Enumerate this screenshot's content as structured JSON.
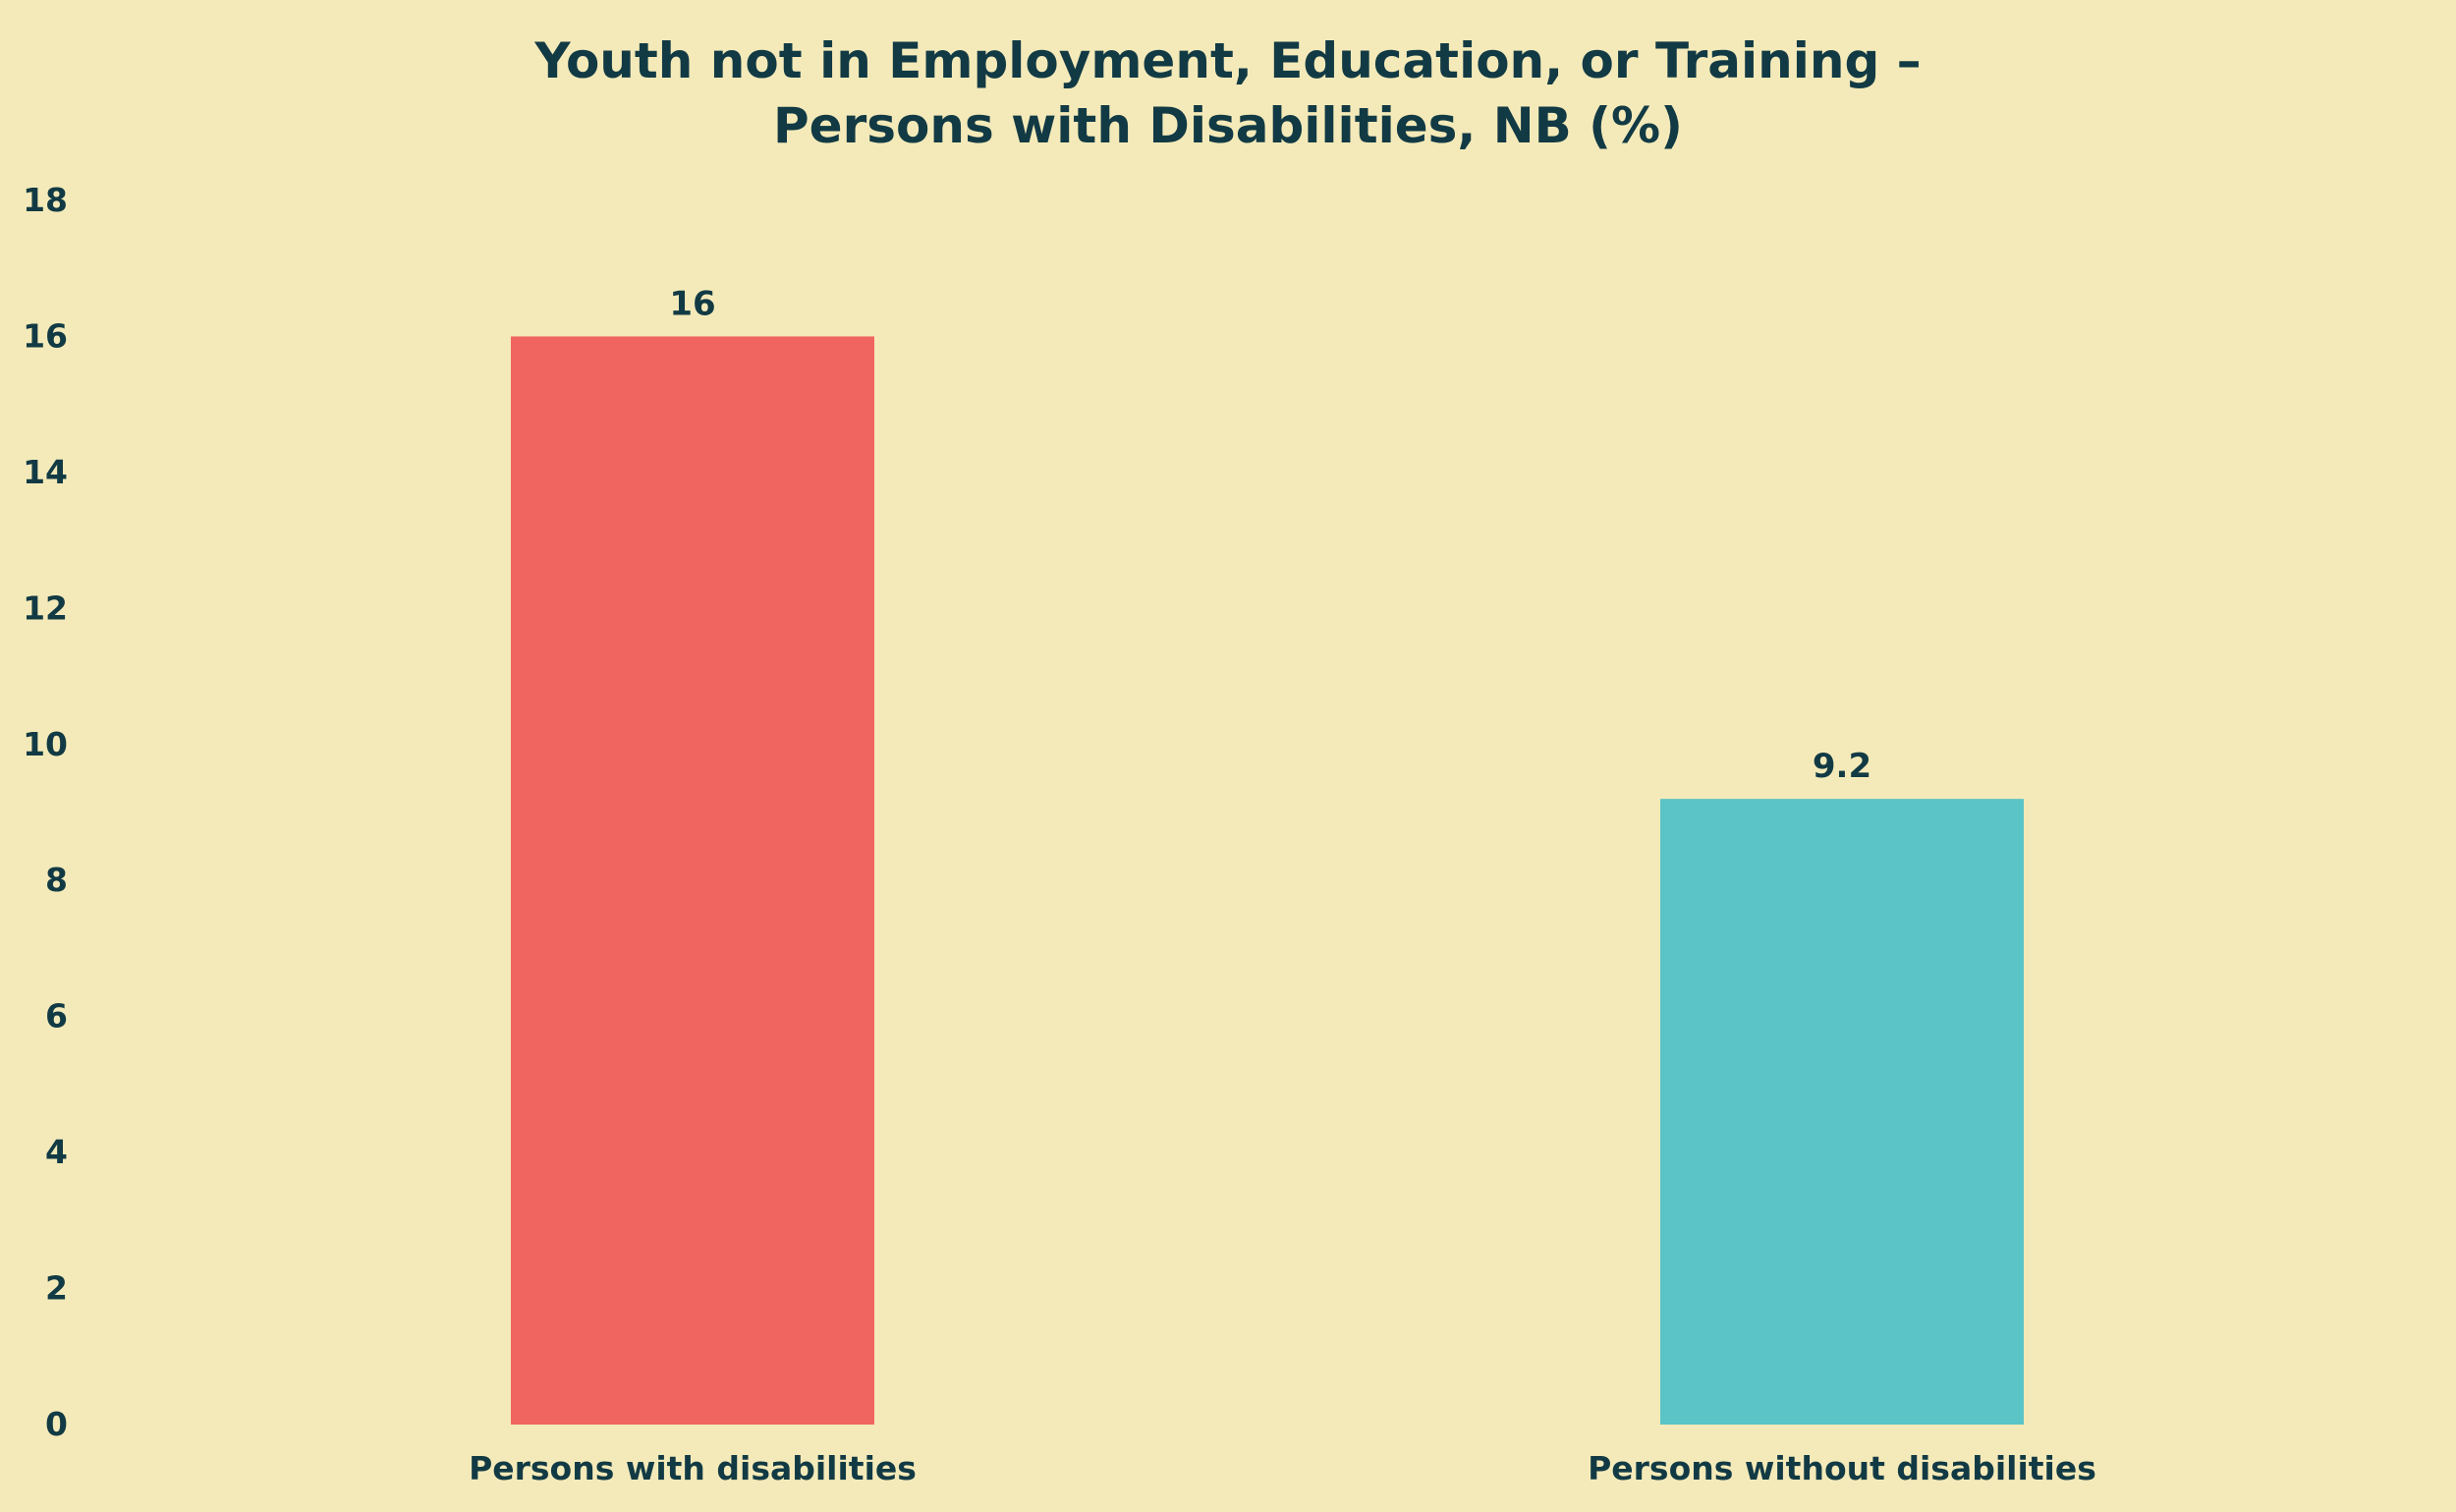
{
  "chart_data": {
    "type": "bar",
    "title": "Youth not in Employment, Education, or Training –",
    "subtitle": "Persons with Disabilities, NB (%)",
    "xlabel": "",
    "ylabel": "",
    "categories": [
      "Persons with disabilities",
      "Persons without disabilities"
    ],
    "values": [
      16,
      9.2
    ],
    "value_labels": [
      "16",
      "9.2"
    ],
    "colors": [
      "#f0655f",
      "#5ac4c7"
    ],
    "ylim": [
      0,
      18
    ],
    "yticks": [
      "0",
      "2",
      "4",
      "6",
      "8",
      "10",
      "12",
      "14",
      "16",
      "18"
    ],
    "grid": false,
    "legend": "none"
  },
  "style": {
    "background": "#f4eab9",
    "text_color": "#123a44"
  }
}
